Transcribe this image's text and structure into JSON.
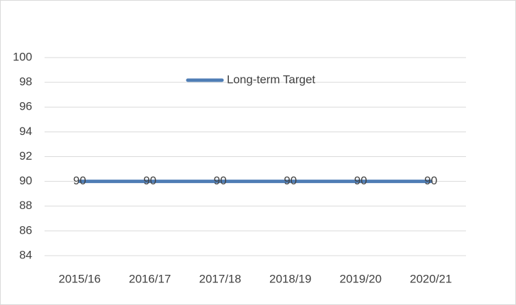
{
  "chart_data": {
    "type": "line",
    "categories": [
      "2015/16",
      "2016/17",
      "2017/18",
      "2018/19",
      "2019/20",
      "2020/21"
    ],
    "series": [
      {
        "name": "Long-term Target",
        "color": "#4f7db5",
        "values": [
          90,
          90,
          90,
          90,
          90,
          90
        ]
      }
    ],
    "ylim": [
      84,
      100
    ],
    "yticks": [
      84,
      86,
      88,
      90,
      92,
      94,
      96,
      98,
      100
    ],
    "grid": true,
    "legend": "top",
    "data_labels": true
  }
}
